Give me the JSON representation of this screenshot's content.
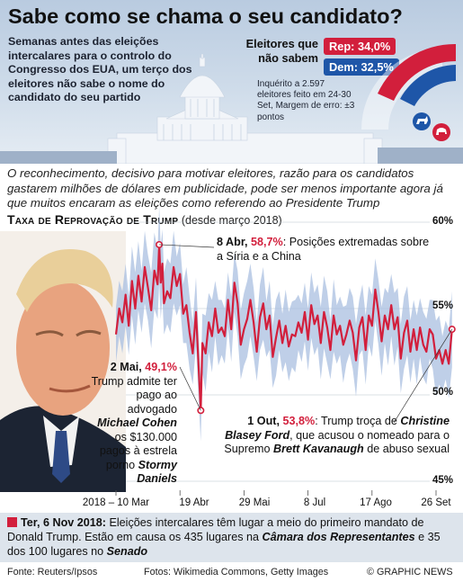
{
  "title": "Sabe como se chama o seu candidato?",
  "intro": "Semanas antes das eleições intercalares para o controlo do Congresso dos EUA, um terço dos eleitores não sabe o nome do candidato do seu partido",
  "voters": {
    "label_line1": "Eleitores que",
    "label_line2": "não sabem",
    "rep_label": "Rep: 34,0%",
    "dem_label": "Dem: 32,5%",
    "rep_value": 34.0,
    "dem_value": 32.5,
    "rep_color": "#d21f3c",
    "dem_color": "#1e56a8",
    "survey_note": "Inquérito a 2.597 eleitores feito em 24-30 Set, Margem de erro: ±3 pontos",
    "icons": [
      "donkey-icon",
      "elephant-icon"
    ]
  },
  "subtitle": "O reconhecimento, decisivo para motivar eleitores, razão para os candidatos gastarem milhões de dólares em publicidade, pode ser menos importante agora já que muitos encaram as eleições como referendo ao Presidente Trump",
  "chart_title": {
    "main": "Taxa de Reprovação de Trump",
    "sub": "(desde março 2018)"
  },
  "annotations": {
    "apr": {
      "date": "8 Abr,",
      "value": "58,7%",
      "text": ": Posições extremadas sobre a Síria e a China"
    },
    "may": {
      "date": "2 Mai,",
      "value": "49,1%",
      "text1": "Trump admite ter pago ao advogado",
      "em1": "Michael Cohen",
      "text2": "os $130.000 pagos à estrela porno",
      "em2": "Stormy Daniels"
    },
    "oct": {
      "date": "1 Out,",
      "value": "53,8%",
      "text1": ": Trump troça de",
      "em1": "Christine Blasey Ford",
      "text2": ", que acusou o nomeado para o Supremo",
      "em2": "Brett Kavanaugh",
      "text3": "de abuso sexual"
    }
  },
  "chart_data": {
    "type": "line",
    "title": "Taxa de Reprovação de Trump",
    "subtitle": "(desde março 2018)",
    "xlabel": "",
    "ylabel": "",
    "x_tick_labels": [
      "2018 – 10 Mar",
      "19 Abr",
      "29 Mai",
      "8 Jul",
      "17 Ago",
      "26 Set"
    ],
    "x_tick_days": [
      0,
      40,
      80,
      120,
      160,
      200
    ],
    "y_tick_labels": [
      "60%",
      "55%",
      "50%",
      "45%"
    ],
    "y_ticks": [
      60,
      55,
      50,
      45
    ],
    "ylim": [
      45,
      60
    ],
    "grid": true,
    "series": [
      {
        "line_color": "#d21f3c",
        "band_color": "#a9bfe0",
        "x_days": [
          0,
          2,
          4,
          6,
          8,
          10,
          12,
          14,
          16,
          18,
          20,
          22,
          24,
          26,
          27,
          28,
          29,
          30,
          32,
          34,
          36,
          38,
          40,
          42,
          44,
          46,
          48,
          50,
          52,
          53,
          54,
          56,
          58,
          60,
          62,
          64,
          66,
          68,
          70,
          72,
          74,
          76,
          78,
          80,
          82,
          84,
          86,
          88,
          90,
          92,
          94,
          96,
          98,
          100,
          102,
          104,
          106,
          108,
          110,
          112,
          114,
          116,
          118,
          120,
          122,
          124,
          126,
          128,
          130,
          132,
          134,
          136,
          138,
          140,
          142,
          144,
          146,
          148,
          150,
          152,
          154,
          156,
          158,
          160,
          162,
          164,
          166,
          168,
          170,
          172,
          174,
          176,
          178,
          180,
          182,
          184,
          186,
          188,
          190,
          192,
          194,
          196,
          198,
          200,
          202,
          204,
          206,
          208,
          210
        ],
        "values": [
          53.5,
          55.0,
          54.2,
          55.8,
          54.0,
          56.6,
          55.0,
          56.9,
          55.4,
          57.4,
          56.2,
          54.9,
          57.2,
          56.4,
          58.7,
          56.5,
          57.6,
          55.3,
          56.0,
          55.6,
          57.4,
          56.3,
          57.0,
          54.7,
          55.2,
          53.6,
          52.4,
          54.8,
          50.9,
          49.1,
          53.0,
          52.4,
          54.2,
          53.4,
          55.0,
          53.6,
          53.9,
          53.4,
          55.5,
          53.8,
          56.5,
          55.3,
          52.9,
          53.8,
          54.4,
          55.5,
          54.2,
          52.5,
          54.5,
          55.3,
          53.8,
          54.6,
          52.2,
          53.3,
          54.3,
          53.0,
          54.0,
          52.8,
          53.5,
          53.4,
          54.2,
          53.6,
          54.8,
          53.2,
          55.2,
          54.1,
          54.6,
          53.0,
          54.8,
          53.9,
          52.6,
          54.6,
          53.5,
          54.0,
          52.9,
          53.5,
          54.3,
          53.6,
          52.0,
          53.9,
          54.5,
          52.6,
          54.6,
          54.0,
          56.1,
          54.8,
          53.1,
          54.6,
          53.8,
          55.2,
          53.8,
          54.5,
          52.1,
          53.6,
          54.3,
          52.5,
          53.8,
          52.6,
          53.9,
          52.9,
          52.5,
          53.8,
          53.5,
          52.1,
          52.6,
          51.8,
          52.6,
          51.8,
          53.8
        ],
        "band_halfwidth": [
          1.6,
          1.6,
          1.8,
          1.8,
          1.7,
          2.0,
          2.1,
          2.0,
          1.8,
          2.1,
          1.9,
          2.2,
          2.2,
          2.0,
          2.2,
          2.1,
          2.0,
          1.8,
          1.9,
          2.0,
          2.1,
          1.7,
          1.8,
          1.7,
          2.2,
          2.1,
          1.8,
          2.0,
          1.9,
          1.8,
          1.7,
          2.2,
          1.7,
          2.1,
          1.6,
          1.9,
          1.6,
          1.6,
          1.6,
          1.9,
          1.7,
          1.9,
          2.0,
          2.1,
          2.2,
          2.1,
          2.0,
          1.7,
          1.9,
          2.1,
          1.6,
          2.0,
          1.8,
          2.2,
          1.7,
          1.7,
          2.1,
          2.0,
          1.9,
          2.1,
          1.6,
          1.7,
          1.7,
          1.8,
          1.9,
          1.8,
          1.8,
          2.1,
          2.1,
          2.1,
          1.7,
          2.1,
          1.7,
          1.7,
          2.2,
          1.7,
          1.9,
          2.1,
          2.1,
          1.6,
          1.9,
          2.0,
          1.7,
          1.8,
          1.8,
          1.9,
          2.0,
          1.6,
          2.1,
          1.8,
          2.1,
          1.7,
          2.0,
          2.1,
          2.0,
          1.8,
          1.7,
          2.0,
          1.7,
          1.9,
          1.9,
          1.7,
          2.0,
          2.2,
          2.0,
          1.6,
          1.7,
          2.0,
          2.2
        ]
      }
    ],
    "highlights": [
      {
        "day": 27,
        "value": 58.7,
        "label": "8 Abr"
      },
      {
        "day": 53,
        "value": 49.1,
        "label": "2 Mai"
      },
      {
        "day": 210,
        "value": 53.8,
        "label": "1 Out"
      }
    ]
  },
  "footer": {
    "date": "Ter, 6 Nov 2018:",
    "text1": " Eleições intercalares têm lugar a meio do primeiro mandato de Donald Trump. Estão em causa os 435 lugares na ",
    "em1": "Câmara dos Representantes",
    "text2": " e 35 dos 100 lugares no ",
    "em2": "Senado"
  },
  "credits": {
    "source": "Fonte: Reuters/Ipsos",
    "photos": "Fotos: Wikimedia Commons, Getty Images",
    "brand": "© GRAPHIC NEWS"
  }
}
